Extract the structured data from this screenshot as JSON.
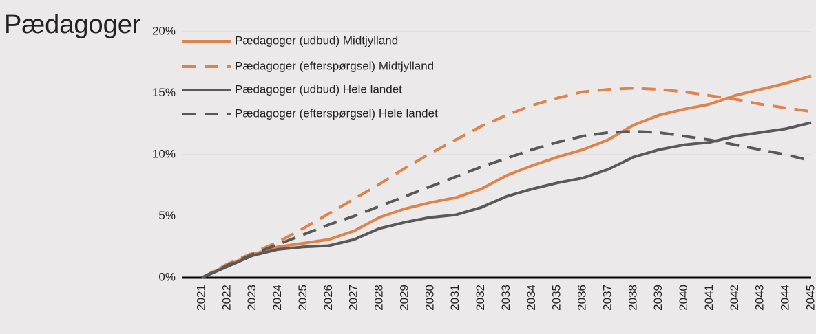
{
  "chart_data": {
    "type": "line",
    "title": "Pædagoger",
    "categories": [
      "2021",
      "2022",
      "2023",
      "2024",
      "2025",
      "2026",
      "2027",
      "2028",
      "2029",
      "2030",
      "2031",
      "2032",
      "2033",
      "2034",
      "2035",
      "2036",
      "2037",
      "2038",
      "2039",
      "2040",
      "2041",
      "2042",
      "2043",
      "2044",
      "2045"
    ],
    "series": [
      {
        "name": "Pædagoger (udbud) Midtjylland",
        "color": "#e0834a",
        "dashed": false,
        "values": [
          0,
          1.0,
          1.9,
          2.5,
          2.8,
          3.1,
          3.8,
          4.9,
          5.6,
          6.1,
          6.5,
          7.2,
          8.3,
          9.1,
          9.8,
          10.4,
          11.2,
          12.4,
          13.2,
          13.7,
          14.1,
          14.8,
          15.3,
          15.8,
          16.4
        ]
      },
      {
        "name": "Pædagoger (efterspørgsel) Midtjylland",
        "color": "#e0834a",
        "dashed": true,
        "values": [
          0,
          1.1,
          2.0,
          2.9,
          4.0,
          5.2,
          6.4,
          7.6,
          8.9,
          10.1,
          11.2,
          12.3,
          13.2,
          14.0,
          14.6,
          15.1,
          15.3,
          15.4,
          15.3,
          15.1,
          14.8,
          14.5,
          14.1,
          13.8,
          13.5
        ]
      },
      {
        "name": "Pædagoger (udbud) Hele landet",
        "color": "#595959",
        "dashed": false,
        "values": [
          0,
          0.9,
          1.8,
          2.3,
          2.5,
          2.6,
          3.1,
          4.0,
          4.5,
          4.9,
          5.1,
          5.7,
          6.6,
          7.2,
          7.7,
          8.1,
          8.8,
          9.8,
          10.4,
          10.8,
          11.0,
          11.5,
          11.8,
          12.1,
          12.6
        ]
      },
      {
        "name": "Pædagoger (efterspørgsel) Hele landet",
        "color": "#595959",
        "dashed": true,
        "values": [
          0,
          1.0,
          1.9,
          2.7,
          3.5,
          4.3,
          5.0,
          5.8,
          6.6,
          7.4,
          8.2,
          9.0,
          9.7,
          10.4,
          11.0,
          11.5,
          11.8,
          11.9,
          11.8,
          11.5,
          11.2,
          10.8,
          10.4,
          10.0,
          9.5
        ]
      }
    ],
    "ylim": [
      0,
      20
    ],
    "yticks": [
      {
        "value": 0,
        "label": "0%"
      },
      {
        "value": 5,
        "label": "5%"
      },
      {
        "value": 10,
        "label": "10%"
      },
      {
        "value": 15,
        "label": "15%"
      },
      {
        "value": 20,
        "label": "20%"
      }
    ],
    "grid": true,
    "legend": "top-left"
  }
}
